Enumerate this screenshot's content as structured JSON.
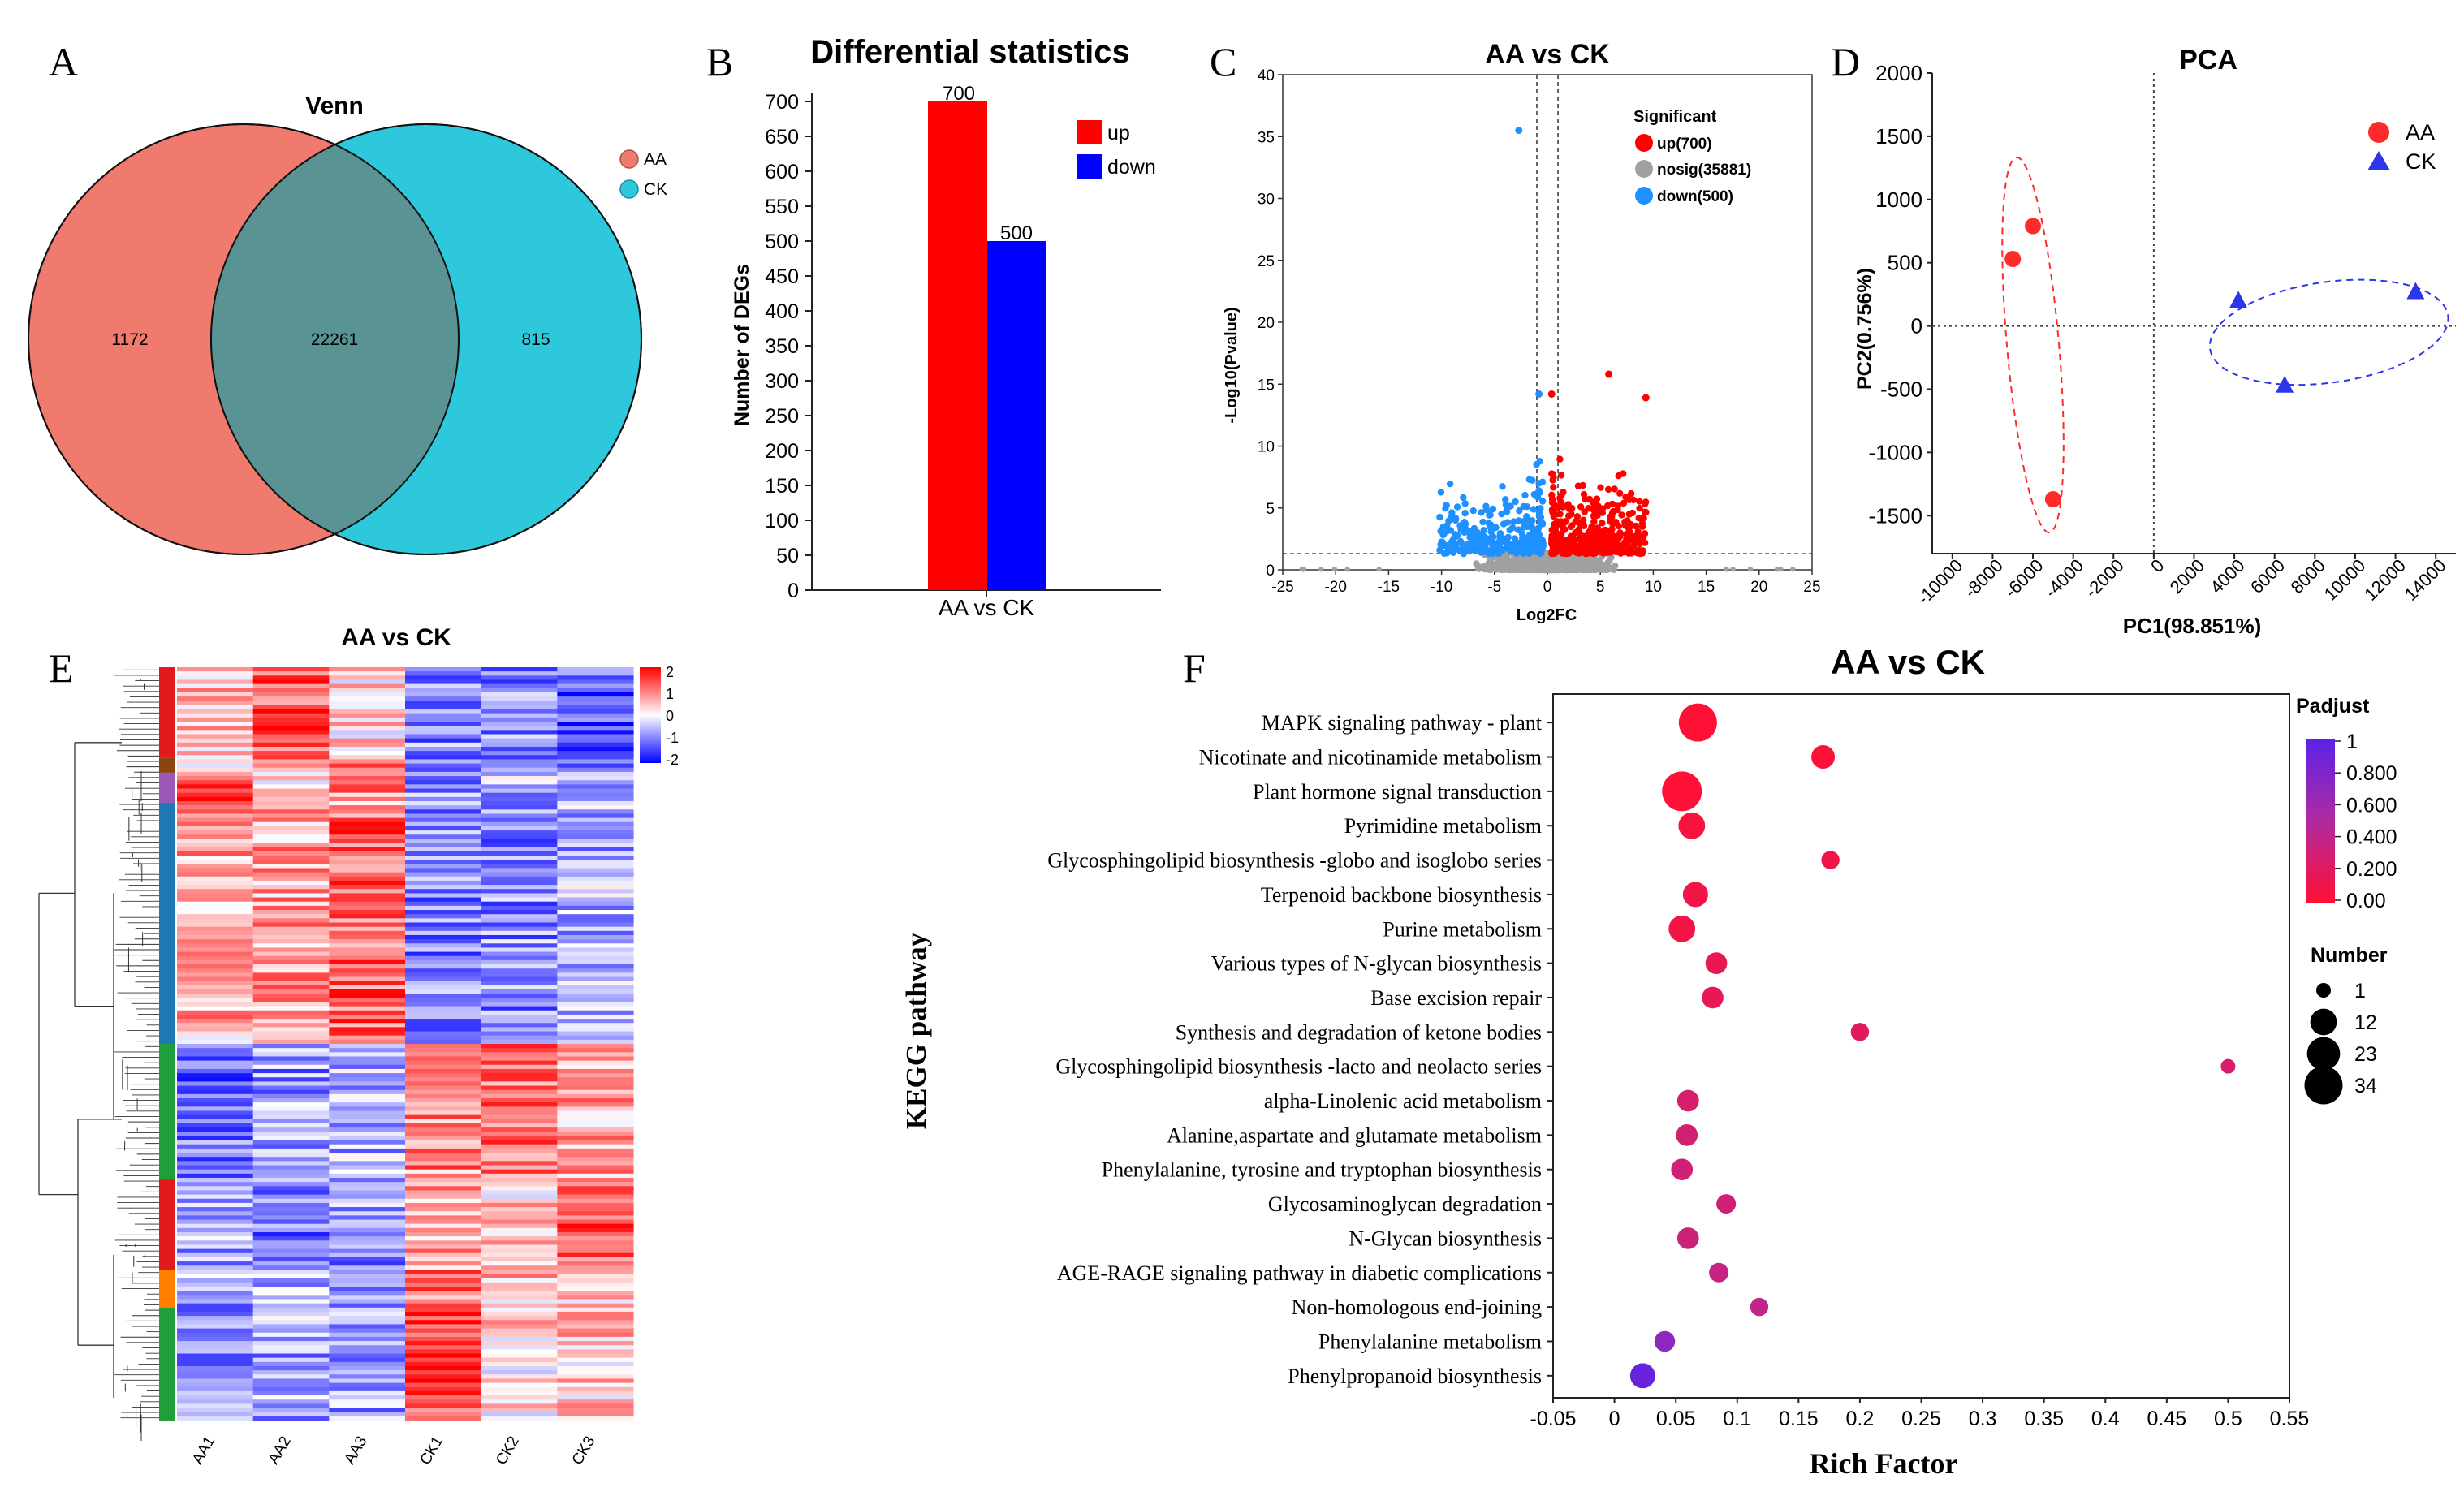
{
  "panels": {
    "A": {
      "letter": "A",
      "title": "Venn",
      "legend": [
        {
          "name": "AA",
          "color": "#F07A6E"
        },
        {
          "name": "CK",
          "color": "#2EC8DC"
        }
      ],
      "only_aa": "1172",
      "shared": "22261",
      "only_ck": "815"
    },
    "B": {
      "letter": "B",
      "title": "Differential statistics",
      "ylabel": "Number of DEGs",
      "category": "AA vs CK",
      "yticks": [
        "0",
        "50",
        "100",
        "150",
        "200",
        "250",
        "300",
        "350",
        "400",
        "450",
        "500",
        "550",
        "600",
        "650",
        "700"
      ],
      "legend": [
        {
          "name": "up",
          "color": "#FF0000"
        },
        {
          "name": "down",
          "color": "#0000FF"
        }
      ],
      "up_label": "700",
      "down_label": "500"
    },
    "C": {
      "letter": "C",
      "title": "AA vs CK",
      "xlabel": "Log2FC",
      "ylabel": "-Log10(Pvalue)",
      "xticks": [
        "-25",
        "-20",
        "-15",
        "-10",
        "-5",
        "0",
        "5",
        "10",
        "15",
        "20",
        "25"
      ],
      "yticks": [
        "0",
        "5",
        "10",
        "15",
        "20",
        "25",
        "30",
        "35",
        "40"
      ],
      "legend_title": "Significant",
      "legend": [
        {
          "name": "up(700)",
          "color": "#FF0000"
        },
        {
          "name": "nosig(35881)",
          "color": "#A0A0A0"
        },
        {
          "name": "down(500)",
          "color": "#1E90FF"
        }
      ]
    },
    "D": {
      "letter": "D",
      "title": "PCA",
      "xlabel": "PC1(98.851%)",
      "ylabel": "PC2(0.756%)",
      "xticks": [
        "-10000",
        "-8000",
        "-6000",
        "-4000",
        "-2000",
        "0",
        "2000",
        "4000",
        "6000",
        "8000",
        "10000",
        "12000",
        "14000"
      ],
      "yticks": [
        "2000",
        "1500",
        "1000",
        "500",
        "0",
        "-500",
        "-1000",
        "-1500"
      ],
      "legend": [
        {
          "name": "AA",
          "color": "#FF2A2A"
        },
        {
          "name": "CK",
          "color": "#2B36E8"
        }
      ]
    },
    "E": {
      "letter": "E",
      "title": "AA vs CK",
      "samples": [
        "AA1",
        "AA2",
        "AA3",
        "CK1",
        "CK2",
        "CK3"
      ],
      "scale": [
        "2",
        "1",
        "0",
        "-1",
        "-2"
      ]
    },
    "F": {
      "letter": "F",
      "title": "AA vs CK",
      "xlabel": "Rich Factor",
      "ylabel": "KEGG pathway",
      "xticks": [
        "-0.05",
        "0",
        "0.05",
        "0.1",
        "0.15",
        "0.2",
        "0.25",
        "0.3",
        "0.35",
        "0.4",
        "0.45",
        "0.5",
        "0.55"
      ],
      "padj_title": "Padjust",
      "padj_ticks": [
        "1",
        "0.800",
        "0.600",
        "0.400",
        "0.200",
        "0.00"
      ],
      "number_title": "Number",
      "number_ticks": [
        "1",
        "12",
        "23",
        "34"
      ]
    }
  },
  "chart_data": [
    {
      "type": "venn",
      "panel": "A",
      "title": "Venn",
      "sets": [
        "AA",
        "CK"
      ],
      "values": {
        "AA_only": 1172,
        "AA_and_CK": 22261,
        "CK_only": 815
      }
    },
    {
      "type": "bar",
      "panel": "B",
      "title": "Differential statistics",
      "categories": [
        "AA vs CK"
      ],
      "series": [
        {
          "name": "up",
          "values": [
            700
          ]
        },
        {
          "name": "down",
          "values": [
            500
          ]
        }
      ],
      "ylabel": "Number of DEGs",
      "ylim": [
        0,
        700
      ]
    },
    {
      "type": "scatter",
      "panel": "C",
      "title": "AA vs CK",
      "xlabel": "Log2FC",
      "ylabel": "-Log10(Pvalue)",
      "xlim": [
        -25,
        25
      ],
      "ylim": [
        0,
        40
      ],
      "series": [
        {
          "name": "up(700)",
          "count": 700
        },
        {
          "name": "nosig(35881)",
          "count": 35881
        },
        {
          "name": "down(500)",
          "count": 500
        }
      ],
      "thresholds": {
        "log2fc": [
          -1,
          1
        ],
        "neg_log10_p": 1.3
      },
      "notable_points": [
        {
          "series": "down",
          "x": -2.7,
          "y": 35.5
        },
        {
          "series": "down",
          "x": -0.8,
          "y": 14.2
        },
        {
          "series": "up",
          "x": 0.4,
          "y": 14.2
        },
        {
          "series": "up",
          "x": 5.8,
          "y": 15.8
        },
        {
          "series": "up",
          "x": 9.3,
          "y": 13.9
        }
      ]
    },
    {
      "type": "scatter",
      "panel": "D",
      "title": "PCA",
      "xlabel": "PC1(98.851%)",
      "ylabel": "PC2(0.756%)",
      "xlim": [
        -11000,
        15000
      ],
      "ylim": [
        -1800,
        2000
      ],
      "series": [
        {
          "name": "AA",
          "points": [
            [
              -7000,
              530
            ],
            [
              -6000,
              790
            ],
            [
              -5000,
              -1370
            ]
          ]
        },
        {
          "name": "CK",
          "points": [
            [
              4200,
              200
            ],
            [
              6500,
              -470
            ],
            [
              13000,
              270
            ]
          ]
        }
      ]
    },
    {
      "type": "heatmap",
      "panel": "E",
      "title": "AA vs CK",
      "columns": [
        "AA1",
        "AA2",
        "AA3",
        "CK1",
        "CK2",
        "CK3"
      ],
      "value_range": [
        -2,
        2
      ],
      "cluster_colors": [
        "#E31A1C",
        "#8B4513",
        "#9B59B6",
        "#1F78B4",
        "#1F9E3A",
        "#E31A1C",
        "#FF7F00",
        "#1F9E3A"
      ]
    },
    {
      "type": "scatter",
      "panel": "F",
      "title": "AA vs CK",
      "xlabel": "Rich Factor",
      "ylabel": "KEGG pathway",
      "xlim": [
        -0.05,
        0.55
      ],
      "pathways": [
        {
          "name": "MAPK signaling pathway - plant",
          "rich": 0.068,
          "number": 34,
          "padj": 0.0
        },
        {
          "name": "Nicotinate and nicotinamide metabolism",
          "rich": 0.17,
          "number": 8,
          "padj": 0.02
        },
        {
          "name": "Plant hormone signal transduction",
          "rich": 0.055,
          "number": 38,
          "padj": 0.01
        },
        {
          "name": "Pyrimidine metabolism",
          "rich": 0.063,
          "number": 12,
          "padj": 0.05
        },
        {
          "name": "Glycosphingolipid biosynthesis -globo and isoglobo series",
          "rich": 0.176,
          "number": 3,
          "padj": 0.09
        },
        {
          "name": "Terpenoid backbone biosynthesis",
          "rich": 0.066,
          "number": 10,
          "padj": 0.08
        },
        {
          "name": "Purine metabolism",
          "rich": 0.055,
          "number": 12,
          "padj": 0.08
        },
        {
          "name": "Various types of N-glycan biosynthesis",
          "rich": 0.083,
          "number": 6,
          "padj": 0.14
        },
        {
          "name": "Base excision repair",
          "rich": 0.08,
          "number": 6,
          "padj": 0.15
        },
        {
          "name": "Synthesis and degradation of ketone bodies",
          "rich": 0.2,
          "number": 3,
          "padj": 0.2
        },
        {
          "name": "Glycosphingolipid biosynthesis -lacto and neolacto series",
          "rich": 0.5,
          "number": 1,
          "padj": 0.25
        },
        {
          "name": "alpha-Linolenic acid metabolism",
          "rich": 0.06,
          "number": 6,
          "padj": 0.26
        },
        {
          "name": "Alanine,aspartate and glutamate metabolism",
          "rich": 0.059,
          "number": 6,
          "padj": 0.28
        },
        {
          "name": "Phenylalanine, tyrosine and tryptophan biosynthesis",
          "rich": 0.055,
          "number": 6,
          "padj": 0.3
        },
        {
          "name": "Glycosaminoglycan degradation",
          "rich": 0.091,
          "number": 4,
          "padj": 0.3
        },
        {
          "name": "N-Glycan biosynthesis",
          "rich": 0.06,
          "number": 6,
          "padj": 0.32
        },
        {
          "name": "AGE-RAGE signaling pathway in diabetic complications",
          "rich": 0.085,
          "number": 4,
          "padj": 0.36
        },
        {
          "name": "Non-homologous end-joining",
          "rich": 0.118,
          "number": 3,
          "padj": 0.4
        },
        {
          "name": "Phenylalanine metabolism",
          "rich": 0.041,
          "number": 5,
          "padj": 0.7
        },
        {
          "name": "Phenylpropanoid biosynthesis",
          "rich": 0.023,
          "number": 10,
          "padj": 0.92
        }
      ]
    }
  ]
}
